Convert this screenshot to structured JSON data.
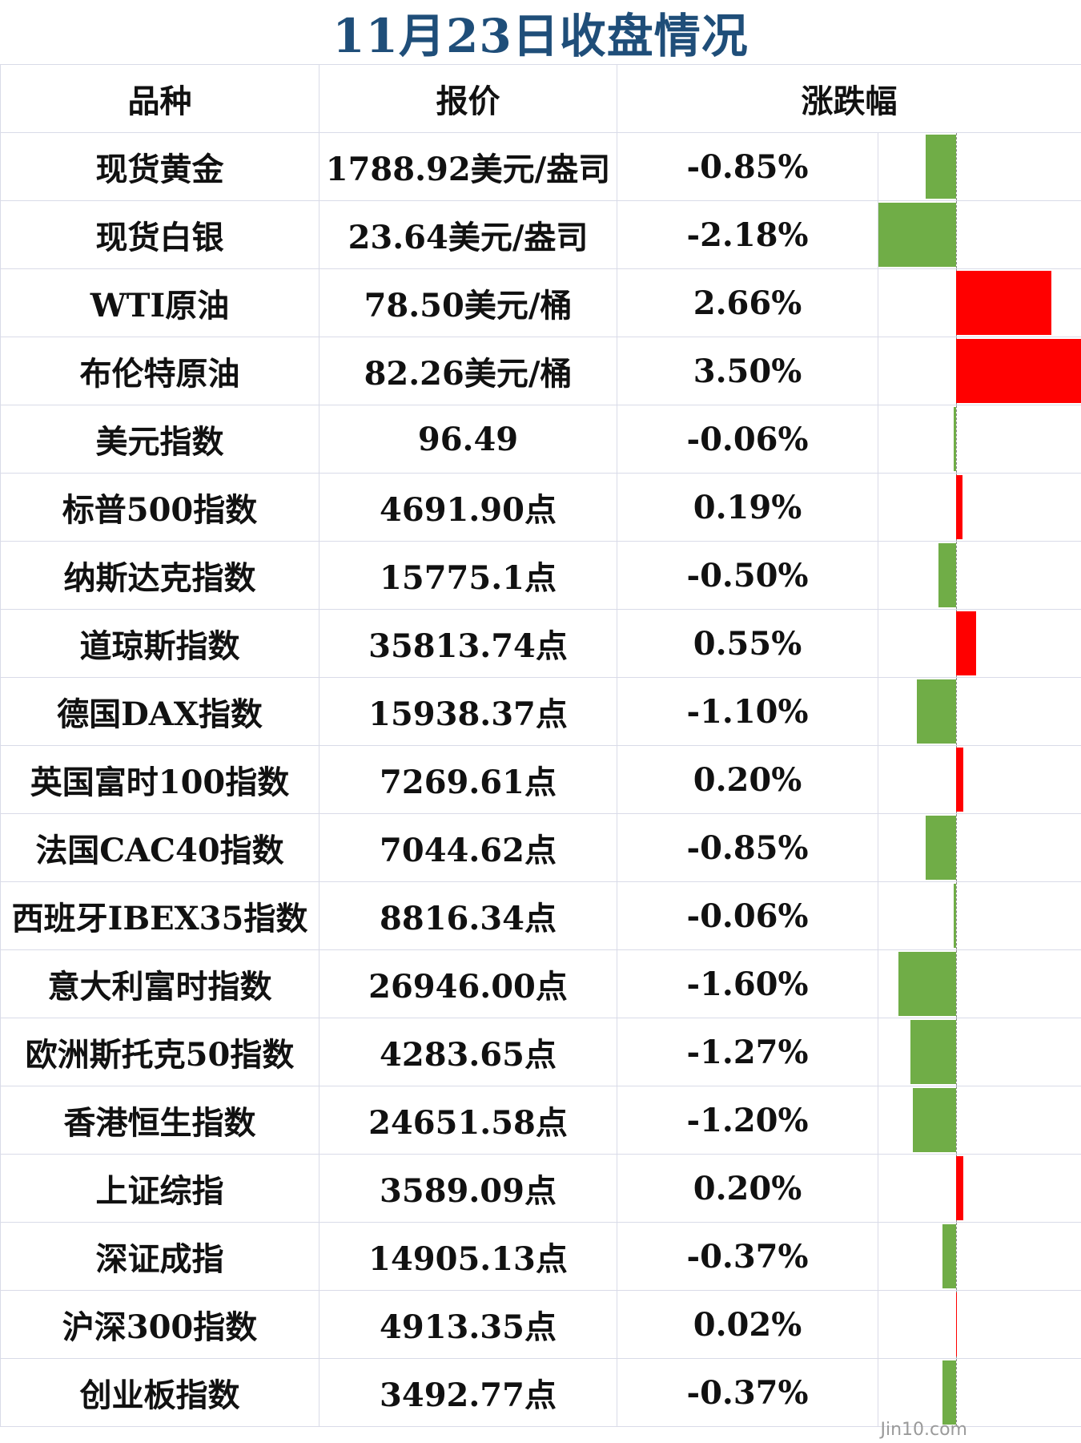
{
  "title": "11月23日收盘情况",
  "watermark": "Jin10.com",
  "colors": {
    "title": "#1f4e79",
    "up": "#ff0000",
    "down": "#70ad47",
    "grid": "#d9dbe8"
  },
  "chart_data": {
    "type": "table",
    "columns": [
      "品种",
      "报价",
      "涨跌幅"
    ],
    "rows": [
      {
        "name": "现货黄金",
        "price": "1788.92美元/盎司",
        "change_text": "-0.85%",
        "change": -0.85
      },
      {
        "name": "现货白银",
        "price": "23.64美元/盎司",
        "change_text": "-2.18%",
        "change": -2.18
      },
      {
        "name": "WTI原油",
        "price": "78.50美元/桶",
        "change_text": "2.66%",
        "change": 2.66
      },
      {
        "name": "布伦特原油",
        "price": "82.26美元/桶",
        "change_text": "3.50%",
        "change": 3.5
      },
      {
        "name": "美元指数",
        "price": "96.49",
        "change_text": "-0.06%",
        "change": -0.06
      },
      {
        "name": "标普500指数",
        "price": "4691.90点",
        "change_text": "0.19%",
        "change": 0.19
      },
      {
        "name": "纳斯达克指数",
        "price": "15775.1点",
        "change_text": "-0.50%",
        "change": -0.5
      },
      {
        "name": "道琼斯指数",
        "price": "35813.74点",
        "change_text": "0.55%",
        "change": 0.55
      },
      {
        "name": "德国DAX指数",
        "price": "15938.37点",
        "change_text": "-1.10%",
        "change": -1.1
      },
      {
        "name": "英国富时100指数",
        "price": "7269.61点",
        "change_text": "0.20%",
        "change": 0.2
      },
      {
        "name": "法国CAC40指数",
        "price": "7044.62点",
        "change_text": "-0.85%",
        "change": -0.85
      },
      {
        "name": "西班牙IBEX35指数",
        "price": "8816.34点",
        "change_text": "-0.06%",
        "change": -0.06
      },
      {
        "name": "意大利富时指数",
        "price": "26946.00点",
        "change_text": "-1.60%",
        "change": -1.6
      },
      {
        "name": "欧洲斯托克50指数",
        "price": "4283.65点",
        "change_text": "-1.27%",
        "change": -1.27
      },
      {
        "name": "香港恒生指数",
        "price": "24651.58点",
        "change_text": "-1.20%",
        "change": -1.2
      },
      {
        "name": "上证综指",
        "price": "3589.09点",
        "change_text": "0.20%",
        "change": 0.2
      },
      {
        "name": "深证成指",
        "price": "14905.13点",
        "change_text": "-0.37%",
        "change": -0.37
      },
      {
        "name": "沪深300指数",
        "price": "4913.35点",
        "change_text": "0.02%",
        "change": 0.02
      },
      {
        "name": "创业板指数",
        "price": "3492.77点",
        "change_text": "-0.37%",
        "change": -0.37
      }
    ],
    "bar_range": [
      -2.18,
      3.5
    ]
  }
}
